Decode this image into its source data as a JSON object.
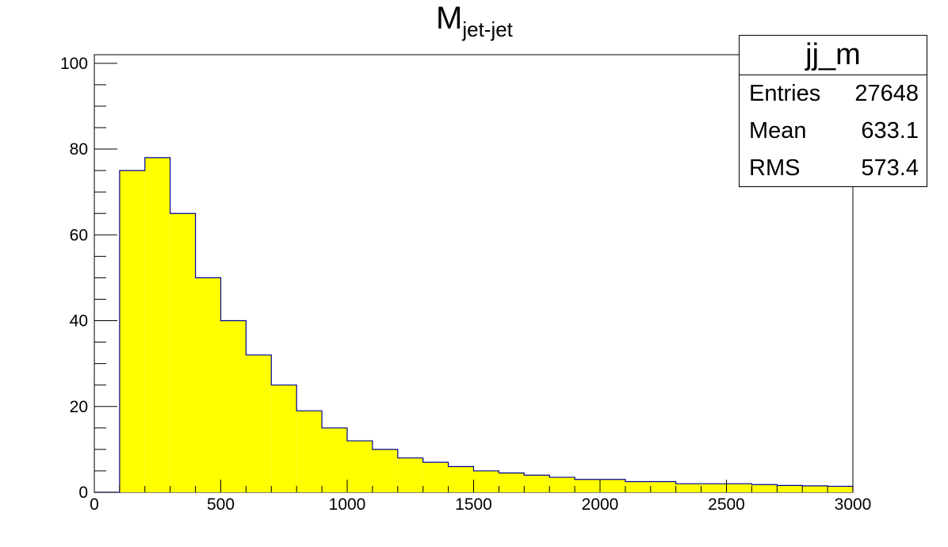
{
  "chart_data": {
    "type": "bar",
    "title": "M",
    "title_subscript": "jet-jet",
    "xlabel": "",
    "ylabel": "",
    "xlim": [
      0,
      3000
    ],
    "ylim": [
      0,
      102
    ],
    "x_ticks": [
      0,
      500,
      1000,
      1500,
      2000,
      2500,
      3000
    ],
    "y_ticks": [
      0,
      20,
      40,
      60,
      80,
      100
    ],
    "grid": false,
    "fill_color": "#ffff00",
    "line_color": "#000099",
    "series": [
      {
        "name": "jj_m",
        "bin_width": 100,
        "x": [
          100,
          200,
          300,
          400,
          500,
          600,
          700,
          800,
          900,
          1000,
          1100,
          1200,
          1300,
          1400,
          1500,
          1600,
          1700,
          1800,
          1900,
          2000,
          2100,
          2200,
          2300,
          2400,
          2500,
          2600,
          2700,
          2800,
          2900
        ],
        "values": [
          75,
          78,
          65,
          50,
          40,
          32,
          25,
          19,
          15,
          12,
          10,
          8,
          7,
          6,
          5,
          4.5,
          4,
          3.5,
          3,
          3,
          2.5,
          2.5,
          2,
          2,
          2,
          1.8,
          1.6,
          1.5,
          1.4
        ]
      }
    ]
  },
  "stats": {
    "name": "jj_m",
    "rows": [
      {
        "label": "Entries",
        "value": "27648"
      },
      {
        "label": "Mean",
        "value": "633.1"
      },
      {
        "label": "RMS",
        "value": "573.4"
      }
    ]
  }
}
